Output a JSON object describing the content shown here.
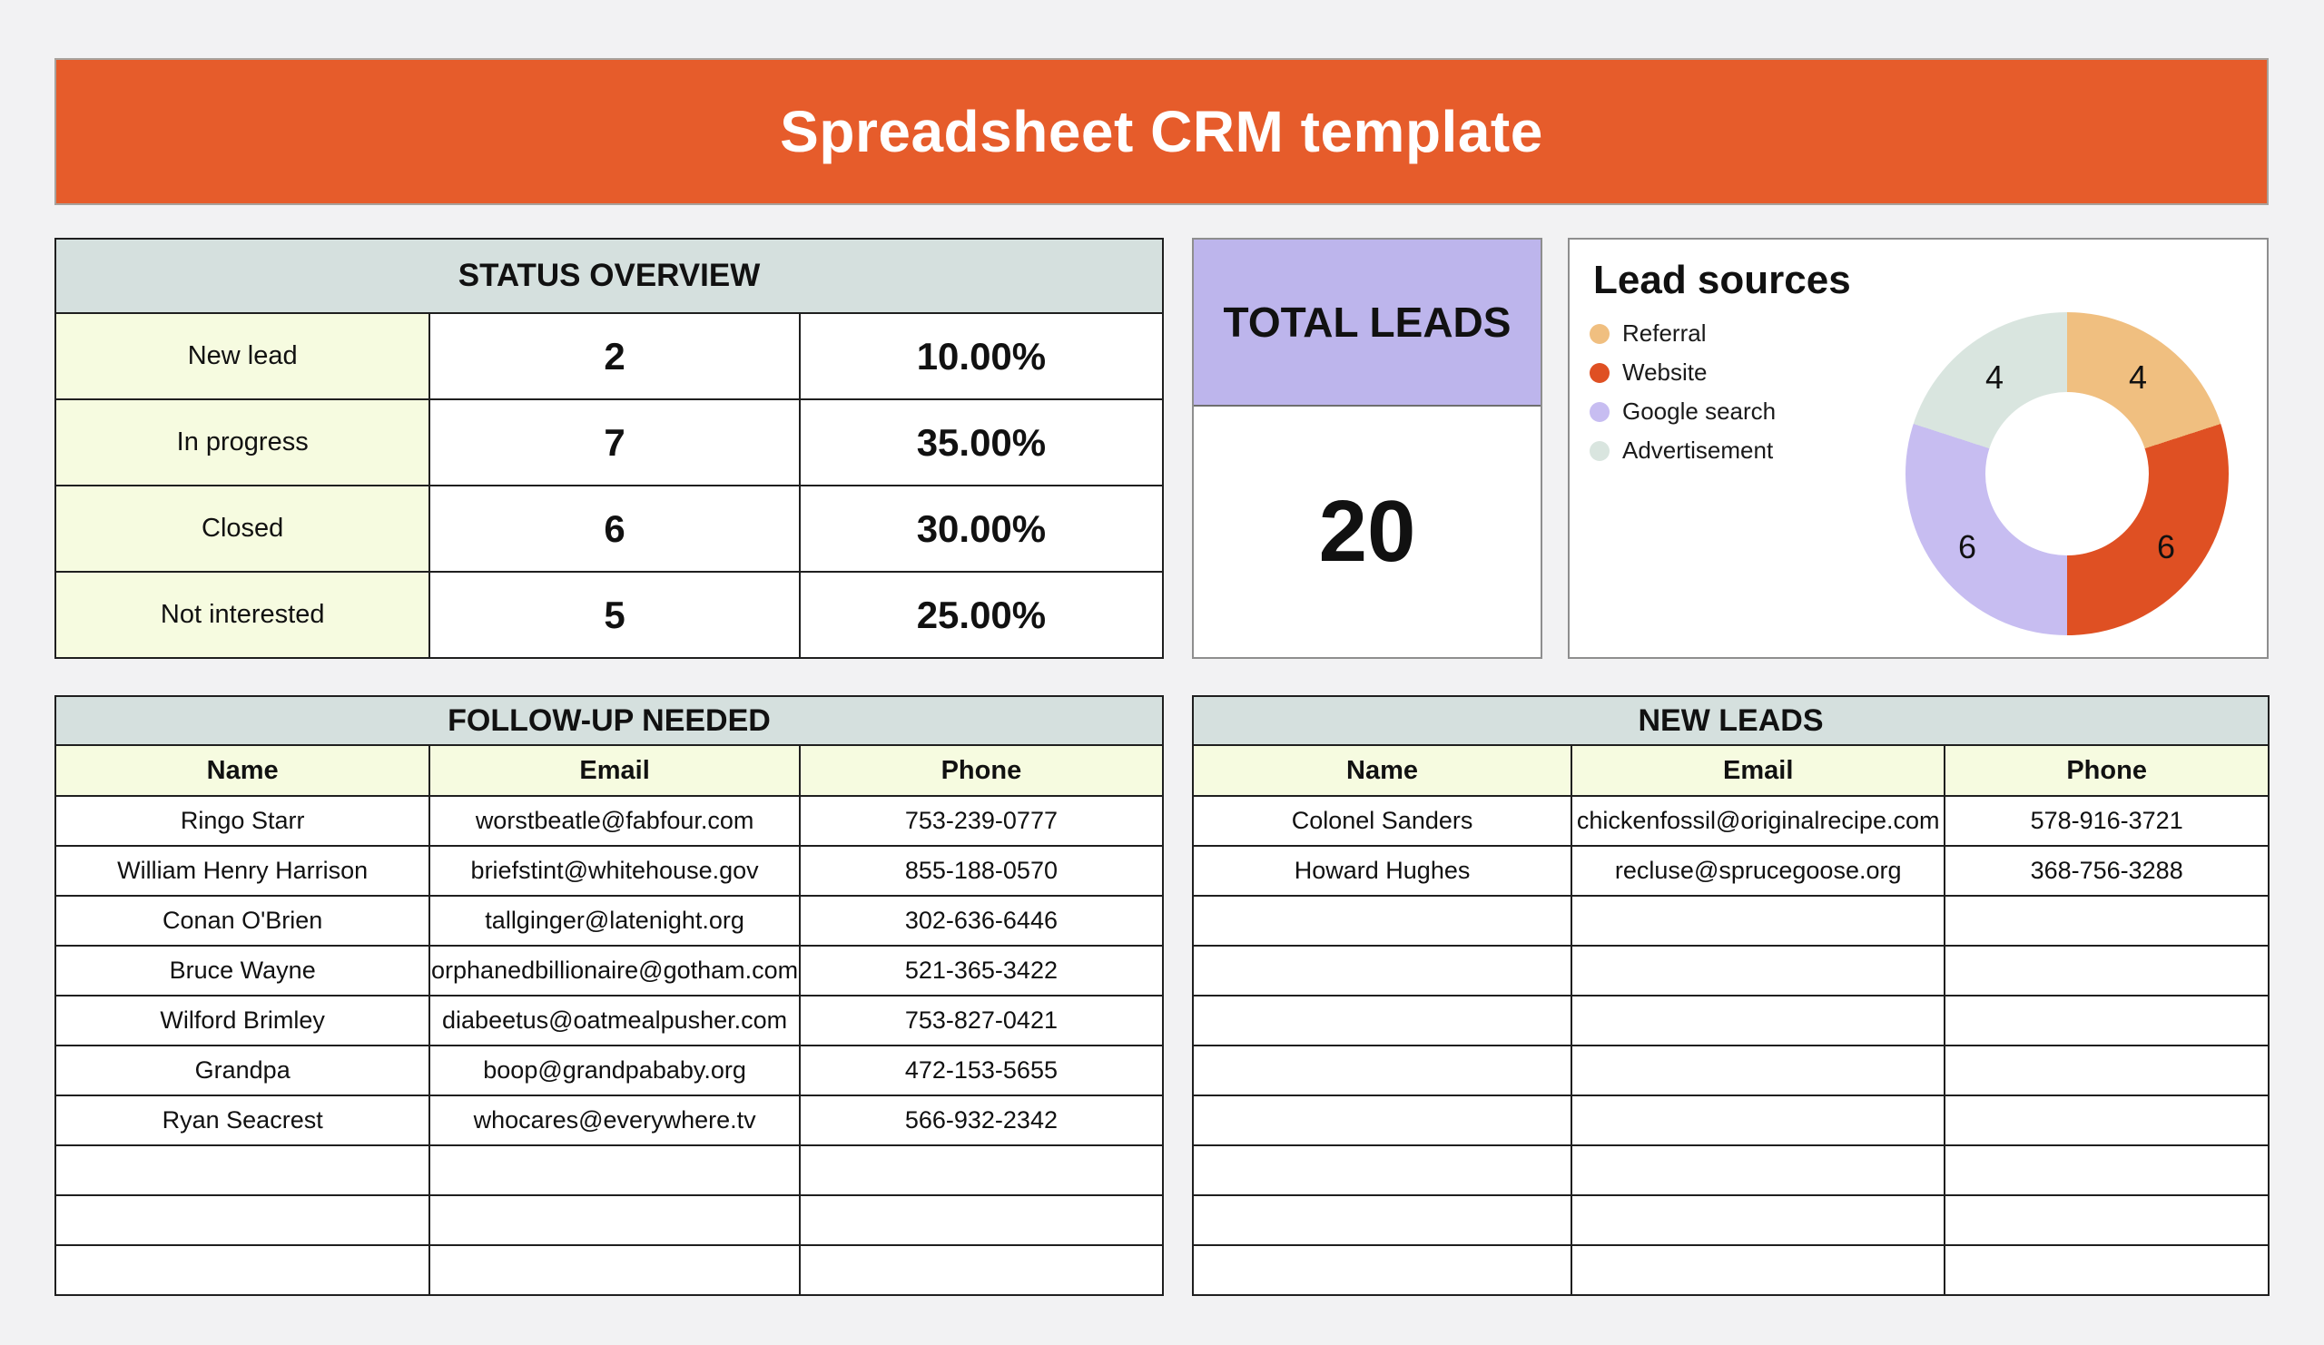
{
  "page": {
    "title": "Spreadsheet CRM template"
  },
  "status_overview": {
    "title": "STATUS OVERVIEW",
    "rows": [
      {
        "label": "New lead",
        "count": "2",
        "percent": "10.00%"
      },
      {
        "label": "In progress",
        "count": "7",
        "percent": "35.00%"
      },
      {
        "label": "Closed",
        "count": "6",
        "percent": "30.00%"
      },
      {
        "label": "Not interested",
        "count": "5",
        "percent": "25.00%"
      }
    ]
  },
  "total_leads": {
    "title": "TOTAL LEADS",
    "value": "20"
  },
  "lead_sources": {
    "title": "Lead sources",
    "legend": [
      {
        "label": "Referral",
        "color": "#F0BF80"
      },
      {
        "label": "Website",
        "color": "#DF5023"
      },
      {
        "label": "Google search",
        "color": "#C7BDF1"
      },
      {
        "label": "Advertisement",
        "color": "#D9E5DF"
      }
    ]
  },
  "chart_data": {
    "type": "pie",
    "subtype": "donut",
    "title": "Lead sources",
    "labels": [
      "Referral",
      "Website",
      "Google search",
      "Advertisement"
    ],
    "values": [
      4,
      6,
      6,
      4
    ],
    "colors": [
      "#F0BF80",
      "#DF5023",
      "#C7BDF1",
      "#D9E5DF"
    ],
    "start_angle_deg": 0,
    "direction": "clockwise",
    "legend_position": "left",
    "data_labels": "values"
  },
  "follow_up": {
    "title": "FOLLOW-UP NEEDED",
    "columns": [
      "Name",
      "Email",
      "Phone"
    ],
    "rows": [
      {
        "name": "Ringo Starr",
        "email": "worstbeatle@fabfour.com",
        "phone": "753-239-0777"
      },
      {
        "name": "William Henry Harrison",
        "email": "briefstint@whitehouse.gov",
        "phone": "855-188-0570"
      },
      {
        "name": "Conan O'Brien",
        "email": "tallginger@latenight.org",
        "phone": "302-636-6446"
      },
      {
        "name": "Bruce Wayne",
        "email": "orphanedbillionaire@gotham.com",
        "phone": "521-365-3422"
      },
      {
        "name": "Wilford Brimley",
        "email": "diabeetus@oatmealpusher.com",
        "phone": "753-827-0421"
      },
      {
        "name": "Grandpa",
        "email": "boop@grandpababy.org",
        "phone": "472-153-5655"
      },
      {
        "name": "Ryan Seacrest",
        "email": "whocares@everywhere.tv",
        "phone": "566-932-2342"
      }
    ],
    "empty_rows": 3
  },
  "new_leads": {
    "title": "NEW LEADS",
    "columns": [
      "Name",
      "Email",
      "Phone"
    ],
    "rows": [
      {
        "name": "Colonel Sanders",
        "email": "chickenfossil@originalrecipe.com",
        "phone": "578-916-3721"
      },
      {
        "name": "Howard Hughes",
        "email": "recluse@sprucegoose.org",
        "phone": "368-756-3288"
      }
    ],
    "empty_rows": 8
  },
  "colors": {
    "banner": "#E65C2B",
    "section_header": "#D5E0DE",
    "label_cell": "#F6FBE0",
    "total_header": "#BDB5EC",
    "page_background": "#F2F2F3"
  }
}
